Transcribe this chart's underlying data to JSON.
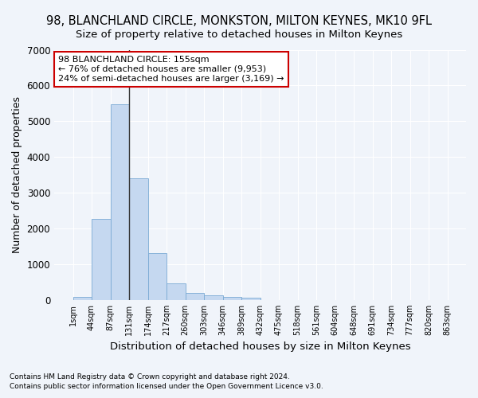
{
  "title": "98, BLANCHLAND CIRCLE, MONKSTON, MILTON KEYNES, MK10 9FL",
  "subtitle": "Size of property relative to detached houses in Milton Keynes",
  "xlabel": "Distribution of detached houses by size in Milton Keynes",
  "ylabel": "Number of detached properties",
  "footnote1": "Contains HM Land Registry data © Crown copyright and database right 2024.",
  "footnote2": "Contains public sector information licensed under the Open Government Licence v3.0.",
  "bar_values": [
    75,
    2270,
    5480,
    3400,
    1320,
    460,
    185,
    120,
    90,
    55,
    0,
    0,
    0,
    0,
    0,
    0,
    0,
    0,
    0,
    0
  ],
  "bar_labels": [
    "1sqm",
    "44sqm",
    "87sqm",
    "131sqm",
    "174sqm",
    "217sqm",
    "260sqm",
    "303sqm",
    "346sqm",
    "389sqm",
    "432sqm",
    "475sqm",
    "518sqm",
    "561sqm",
    "604sqm",
    "648sqm",
    "691sqm",
    "734sqm",
    "777sqm",
    "820sqm",
    "863sqm"
  ],
  "bar_color": "#c5d8f0",
  "bar_edge_color": "#7aaad4",
  "annotation_text": "98 BLANCHLAND CIRCLE: 155sqm\n← 76% of detached houses are smaller (9,953)\n24% of semi-detached houses are larger (3,169) →",
  "annotation_box_color": "#ffffff",
  "annotation_box_edge": "#cc0000",
  "property_line_x": 3,
  "ylim": [
    0,
    7000
  ],
  "yticks": [
    0,
    1000,
    2000,
    3000,
    4000,
    5000,
    6000,
    7000
  ],
  "bg_color": "#f0f4fa",
  "grid_color": "#ffffff",
  "title_fontsize": 10.5,
  "subtitle_fontsize": 9.5,
  "axis_label_fontsize": 9
}
